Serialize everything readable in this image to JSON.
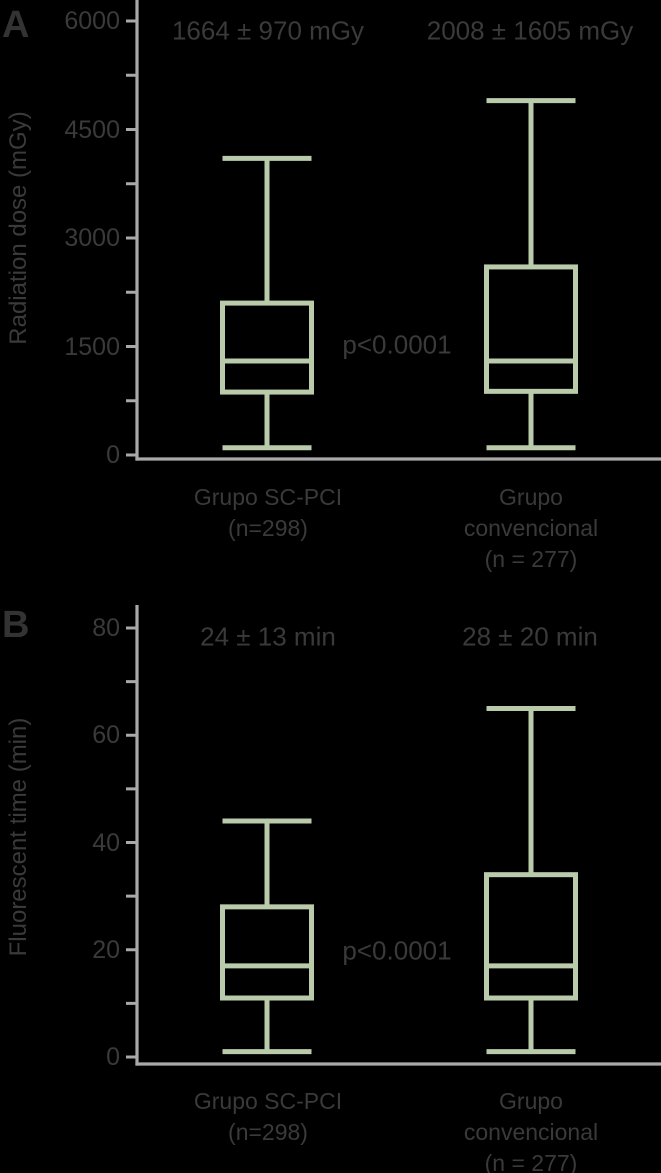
{
  "colors": {
    "background": "#000000",
    "text": "#3a3a3a",
    "panel_letter": "#333333",
    "axis": "#a9a9a9",
    "box_stroke": "#b9cbab"
  },
  "chart_data": [
    {
      "type": "box",
      "panel": "A",
      "ylabel": "Radiation dose (mGy)",
      "ylim": [
        0,
        6000
      ],
      "y_major_ticks": [
        0,
        1500,
        3000,
        4500,
        6000
      ],
      "y_minor_ticks": [
        750,
        2250,
        3750,
        5250
      ],
      "grid": "off",
      "p_label": "p<0.0001",
      "categories": [
        "Grupo SC-PCI (n=298)",
        "Grupo convencional (n = 277)"
      ],
      "categories_lines": [
        [
          "Grupo SC-PCI",
          "(n=298)"
        ],
        [
          "Grupo",
          "convencional",
          "(n = 277)"
        ]
      ],
      "series": [
        {
          "name": "Grupo SC-PCI (n=298)",
          "annotation": "1664 ± 970 mGy",
          "min": 100,
          "q1": 870,
          "median": 1300,
          "q3": 2100,
          "max": 4100
        },
        {
          "name": "Grupo convencional (n = 277)",
          "annotation": "2008 ± 1605 mGy",
          "min": 100,
          "q1": 880,
          "median": 1300,
          "q3": 2600,
          "max": 4900
        }
      ]
    },
    {
      "type": "box",
      "panel": "B",
      "ylabel": "Fluorescent time (min)",
      "ylim": [
        0,
        80
      ],
      "y_major_ticks": [
        0,
        20,
        40,
        60,
        80
      ],
      "y_minor_ticks": [
        10,
        30,
        50,
        70
      ],
      "grid": "off",
      "p_label": "p<0.0001",
      "categories": [
        "Grupo SC-PCI (n=298)",
        "Grupo convencional (n = 277)"
      ],
      "categories_lines": [
        [
          "Grupo SC-PCI",
          "(n=298)"
        ],
        [
          "Grupo",
          "convencional",
          "(n = 277)"
        ]
      ],
      "series": [
        {
          "name": "Grupo SC-PCI (n=298)",
          "annotation": "24 ± 13 min",
          "min": 1,
          "q1": 11,
          "median": 17,
          "q3": 28,
          "max": 44
        },
        {
          "name": "Grupo convencional (n = 277)",
          "annotation": "28 ± 20 min",
          "min": 1,
          "q1": 11,
          "median": 17,
          "q3": 34,
          "max": 65
        }
      ]
    }
  ]
}
